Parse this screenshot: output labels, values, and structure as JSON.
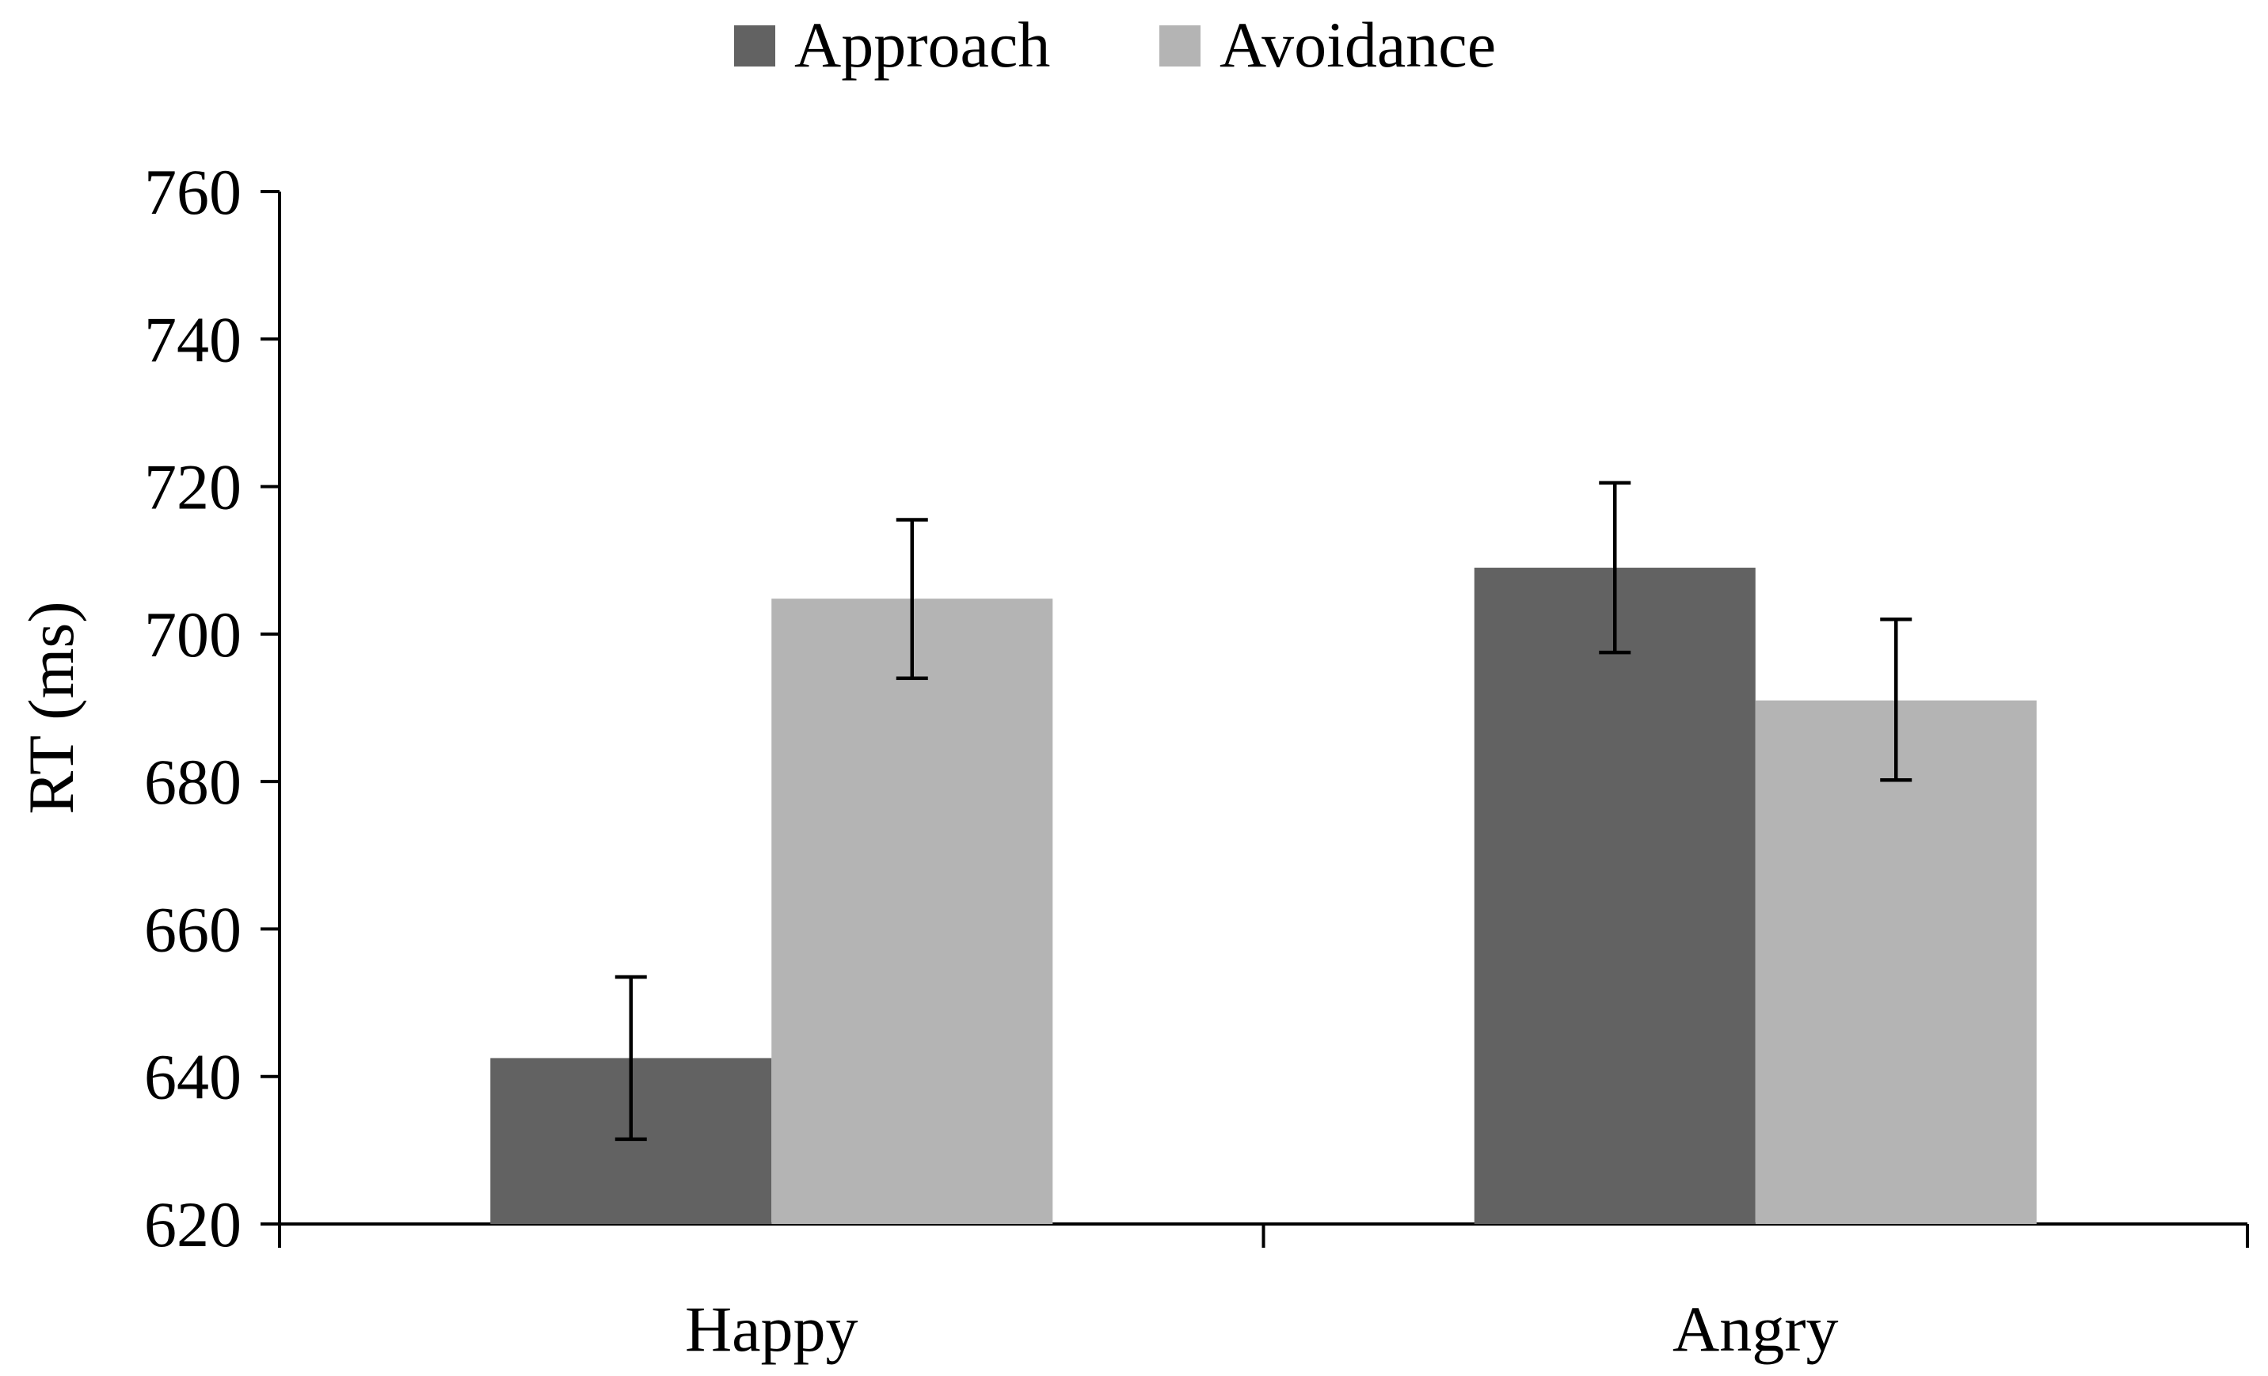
{
  "chart_data": {
    "type": "bar",
    "title": "",
    "xlabel": "",
    "ylabel": "RT (ms)",
    "ylim": [
      620,
      760
    ],
    "yticks": [
      620,
      640,
      660,
      680,
      700,
      720,
      740,
      760
    ],
    "categories": [
      "Happy",
      "Angry"
    ],
    "series": [
      {
        "name": "Approach",
        "color": "#626262",
        "values": [
          642.5,
          709
        ],
        "error": [
          [
            631.5,
            653.5
          ],
          [
            697.5,
            720.5
          ]
        ]
      },
      {
        "name": "Avoidance",
        "color": "#b4b4b4",
        "values": [
          704.8,
          691
        ],
        "error": [
          [
            694,
            715.5
          ],
          [
            680.2,
            702
          ]
        ]
      }
    ],
    "grid": false,
    "legend_position": "top-center"
  }
}
